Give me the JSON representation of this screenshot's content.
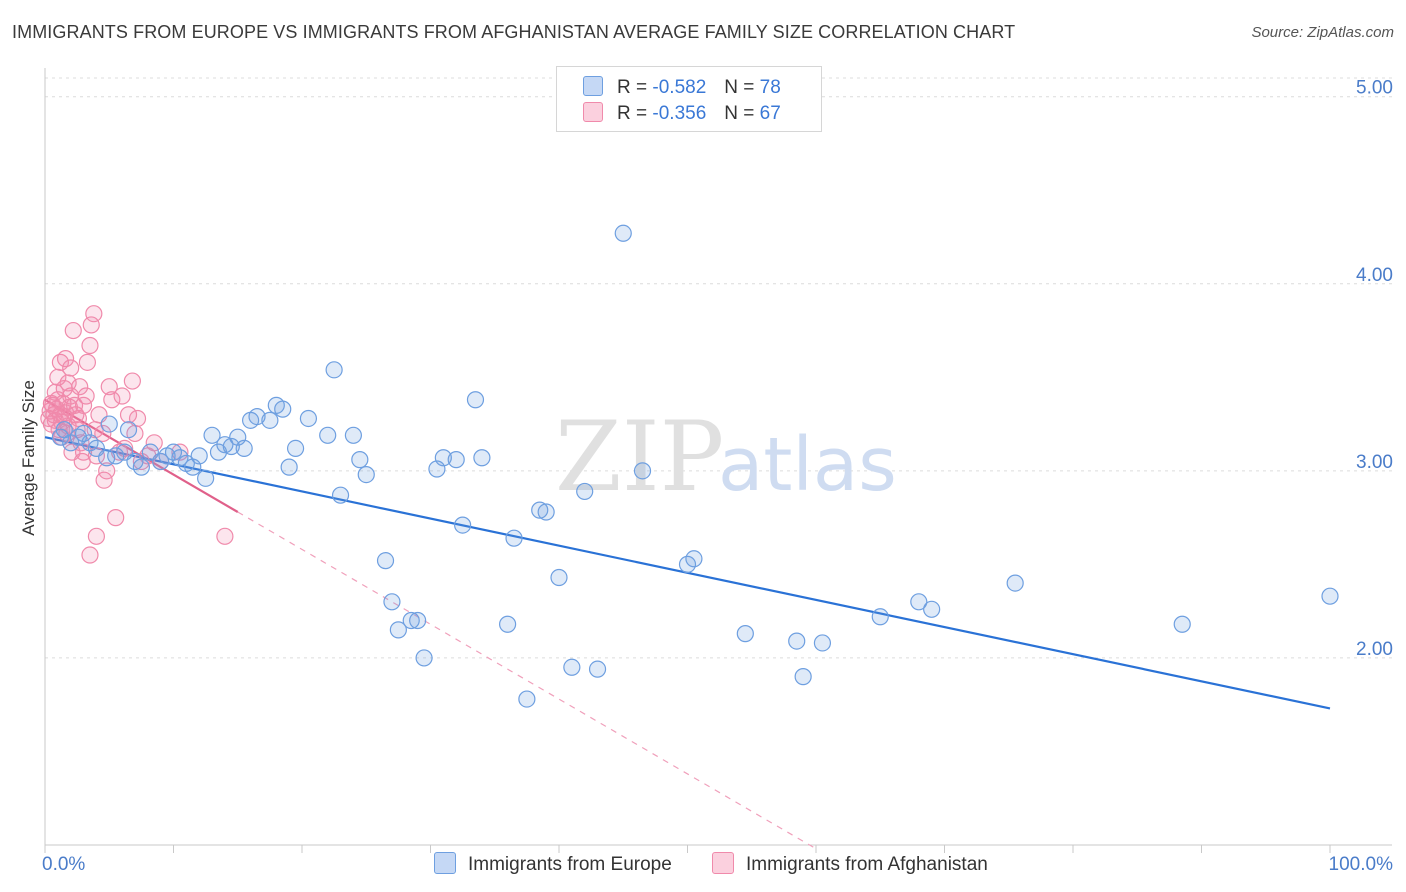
{
  "title": "IMMIGRANTS FROM EUROPE VS IMMIGRANTS FROM AFGHANISTAN AVERAGE FAMILY SIZE CORRELATION CHART",
  "source": "Source: ZipAtlas.com",
  "watermark": {
    "zip": "ZIP",
    "atlas": "atlas"
  },
  "legend": {
    "r_label": "R =",
    "n_label": "N =",
    "series": [
      {
        "name": "Immigrants from Europe",
        "r": "-0.582",
        "n": "78"
      },
      {
        "name": "Immigrants from Afghanistan",
        "r": "-0.356",
        "n": "67"
      }
    ]
  },
  "chart_data": {
    "type": "scatter",
    "title": "IMMIGRANTS FROM EUROPE VS IMMIGRANTS FROM AFGHANISTAN AVERAGE FAMILY SIZE CORRELATION CHART",
    "xlabel": "",
    "ylabel": "Average Family Size",
    "x_unit": "%",
    "xlim": [
      0,
      100
    ],
    "ylim": [
      1.0,
      5.1
    ],
    "x_tick_labels": [
      "0.0%",
      "100.0%"
    ],
    "y_ticks": [
      2.0,
      3.0,
      4.0,
      5.0
    ],
    "y_tick_labels": [
      "2.00",
      "3.00",
      "4.00",
      "5.00"
    ],
    "grid": true,
    "colors": {
      "europe": "#6e9fe0",
      "europe_line": "#2a72d6",
      "afghanistan": "#f08aab",
      "afghanistan_line": "#e0608a"
    },
    "series": [
      {
        "name": "Immigrants from Europe",
        "color": "#6e9fe0",
        "trend": {
          "x": [
            0,
            100
          ],
          "y": [
            3.18,
            1.73
          ]
        },
        "points": [
          [
            1.2,
            3.18
          ],
          [
            1.5,
            3.22
          ],
          [
            2.0,
            3.15
          ],
          [
            2.6,
            3.18
          ],
          [
            3.0,
            3.2
          ],
          [
            3.5,
            3.15
          ],
          [
            4.0,
            3.12
          ],
          [
            4.8,
            3.07
          ],
          [
            5.5,
            3.08
          ],
          [
            6.2,
            3.1
          ],
          [
            6.5,
            3.22
          ],
          [
            7.0,
            3.05
          ],
          [
            7.5,
            3.02
          ],
          [
            8.2,
            3.1
          ],
          [
            9.5,
            3.08
          ],
          [
            10.0,
            3.1
          ],
          [
            10.5,
            3.07
          ],
          [
            11.0,
            3.04
          ],
          [
            11.5,
            3.02
          ],
          [
            12.0,
            3.08
          ],
          [
            12.5,
            2.96
          ],
          [
            13.0,
            3.19
          ],
          [
            13.5,
            3.1
          ],
          [
            14.0,
            3.14
          ],
          [
            14.5,
            3.13
          ],
          [
            15.0,
            3.18
          ],
          [
            15.5,
            3.12
          ],
          [
            16.0,
            3.27
          ],
          [
            16.5,
            3.29
          ],
          [
            17.5,
            3.27
          ],
          [
            18.0,
            3.35
          ],
          [
            18.5,
            3.33
          ],
          [
            19.5,
            3.12
          ],
          [
            19.0,
            3.02
          ],
          [
            20.5,
            3.28
          ],
          [
            22.5,
            3.54
          ],
          [
            22.0,
            3.19
          ],
          [
            23.0,
            2.87
          ],
          [
            24.5,
            3.06
          ],
          [
            24.0,
            3.19
          ],
          [
            25.0,
            2.98
          ],
          [
            26.5,
            2.52
          ],
          [
            27.0,
            2.3
          ],
          [
            27.5,
            2.15
          ],
          [
            28.5,
            2.2
          ],
          [
            29.0,
            2.2
          ],
          [
            29.5,
            2.0
          ],
          [
            30.5,
            3.01
          ],
          [
            31.0,
            3.07
          ],
          [
            32.0,
            3.06
          ],
          [
            32.5,
            2.71
          ],
          [
            33.5,
            3.38
          ],
          [
            34.0,
            3.07
          ],
          [
            36.0,
            2.18
          ],
          [
            36.5,
            2.64
          ],
          [
            37.5,
            1.78
          ],
          [
            38.5,
            2.79
          ],
          [
            39.0,
            2.78
          ],
          [
            40.0,
            2.43
          ],
          [
            41.0,
            1.95
          ],
          [
            42.0,
            2.89
          ],
          [
            43.0,
            1.94
          ],
          [
            45.0,
            4.27
          ],
          [
            46.5,
            3.0
          ],
          [
            50.0,
            2.5
          ],
          [
            50.5,
            2.53
          ],
          [
            54.5,
            2.13
          ],
          [
            58.5,
            2.09
          ],
          [
            59.0,
            1.9
          ],
          [
            60.5,
            2.08
          ],
          [
            65.0,
            2.22
          ],
          [
            68.0,
            2.3
          ],
          [
            69.0,
            2.26
          ],
          [
            75.5,
            2.4
          ],
          [
            88.5,
            2.18
          ],
          [
            100.0,
            2.33
          ],
          [
            5.0,
            3.25
          ],
          [
            9.0,
            3.05
          ]
        ]
      },
      {
        "name": "Immigrants from Afghanistan",
        "color": "#f08aab",
        "trend": {
          "x": [
            0,
            15
          ],
          "y": [
            3.38,
            2.78
          ]
        },
        "trend_extension": {
          "x": [
            15,
            60
          ],
          "y": [
            2.78,
            0.98
          ]
        },
        "points": [
          [
            0.3,
            3.28
          ],
          [
            0.4,
            3.32
          ],
          [
            0.5,
            3.25
          ],
          [
            0.6,
            3.35
          ],
          [
            0.7,
            3.3
          ],
          [
            0.8,
            3.27
          ],
          [
            0.9,
            3.33
          ],
          [
            1.0,
            3.38
          ],
          [
            1.1,
            3.22
          ],
          [
            1.2,
            3.3
          ],
          [
            1.3,
            3.26
          ],
          [
            1.4,
            3.36
          ],
          [
            1.5,
            3.29
          ],
          [
            1.6,
            3.31
          ],
          [
            1.8,
            3.24
          ],
          [
            2.0,
            3.4
          ],
          [
            1.0,
            3.5
          ],
          [
            1.2,
            3.58
          ],
          [
            1.6,
            3.6
          ],
          [
            1.8,
            3.47
          ],
          [
            2.0,
            3.55
          ],
          [
            2.2,
            3.75
          ],
          [
            2.3,
            3.35
          ],
          [
            2.5,
            3.22
          ],
          [
            2.6,
            3.28
          ],
          [
            2.8,
            3.15
          ],
          [
            3.0,
            3.1
          ],
          [
            3.2,
            3.4
          ],
          [
            3.3,
            3.58
          ],
          [
            3.5,
            3.67
          ],
          [
            3.6,
            3.78
          ],
          [
            3.8,
            3.84
          ],
          [
            4.0,
            3.08
          ],
          [
            4.0,
            2.65
          ],
          [
            3.5,
            2.55
          ],
          [
            4.2,
            3.3
          ],
          [
            4.5,
            3.2
          ],
          [
            4.6,
            2.95
          ],
          [
            4.8,
            3.0
          ],
          [
            5.0,
            3.45
          ],
          [
            5.2,
            3.38
          ],
          [
            5.5,
            2.75
          ],
          [
            6.0,
            3.4
          ],
          [
            6.2,
            3.12
          ],
          [
            6.5,
            3.3
          ],
          [
            6.8,
            3.48
          ],
          [
            7.0,
            3.2
          ],
          [
            7.5,
            3.05
          ],
          [
            8.0,
            3.08
          ],
          [
            8.5,
            3.15
          ],
          [
            9.0,
            3.05
          ],
          [
            3.0,
            3.35
          ],
          [
            2.7,
            3.45
          ],
          [
            1.7,
            3.2
          ],
          [
            1.9,
            3.34
          ],
          [
            2.4,
            3.3
          ],
          [
            0.8,
            3.42
          ],
          [
            1.3,
            3.18
          ],
          [
            2.1,
            3.1
          ],
          [
            3.9,
            3.22
          ],
          [
            5.8,
            3.1
          ],
          [
            7.2,
            3.28
          ],
          [
            2.9,
            3.05
          ],
          [
            1.5,
            3.44
          ],
          [
            0.5,
            3.36
          ],
          [
            10.5,
            3.1
          ],
          [
            14.0,
            2.65
          ]
        ]
      }
    ]
  }
}
